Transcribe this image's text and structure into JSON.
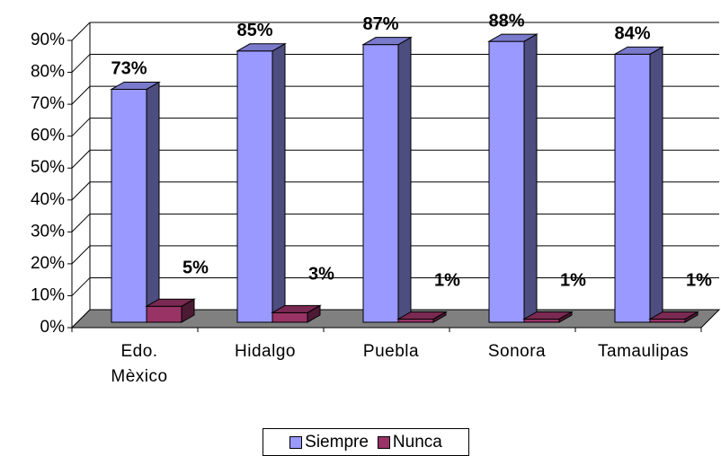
{
  "chart_data": {
    "type": "bar3d",
    "categories": [
      "Edo. Mèxico",
      "Hidalgo",
      "Puebla",
      "Sonora",
      "Tamaulipas"
    ],
    "series": [
      {
        "name": "Siempre",
        "color": "#9999ff",
        "values": [
          73,
          85,
          87,
          88,
          84
        ],
        "value_labels": [
          "73%",
          "85%",
          "87%",
          "88%",
          "84%"
        ]
      },
      {
        "name": "Nunca",
        "color": "#993366",
        "values": [
          5,
          3,
          1,
          1,
          1
        ],
        "value_labels": [
          "5%",
          "3%",
          "1%",
          "1%",
          "1%"
        ]
      }
    ],
    "ylim": [
      0,
      90
    ],
    "yticks": [
      {
        "value": 0,
        "label": "0%"
      },
      {
        "value": 10,
        "label": "10%"
      },
      {
        "value": 20,
        "label": "20%"
      },
      {
        "value": 30,
        "label": "30%"
      },
      {
        "value": 40,
        "label": "40%"
      },
      {
        "value": 50,
        "label": "50%"
      },
      {
        "value": 60,
        "label": "60%"
      },
      {
        "value": 70,
        "label": "70%"
      },
      {
        "value": 80,
        "label": "80%"
      },
      {
        "value": 90,
        "label": "90%"
      }
    ],
    "grid": true,
    "legend": "bottom"
  }
}
